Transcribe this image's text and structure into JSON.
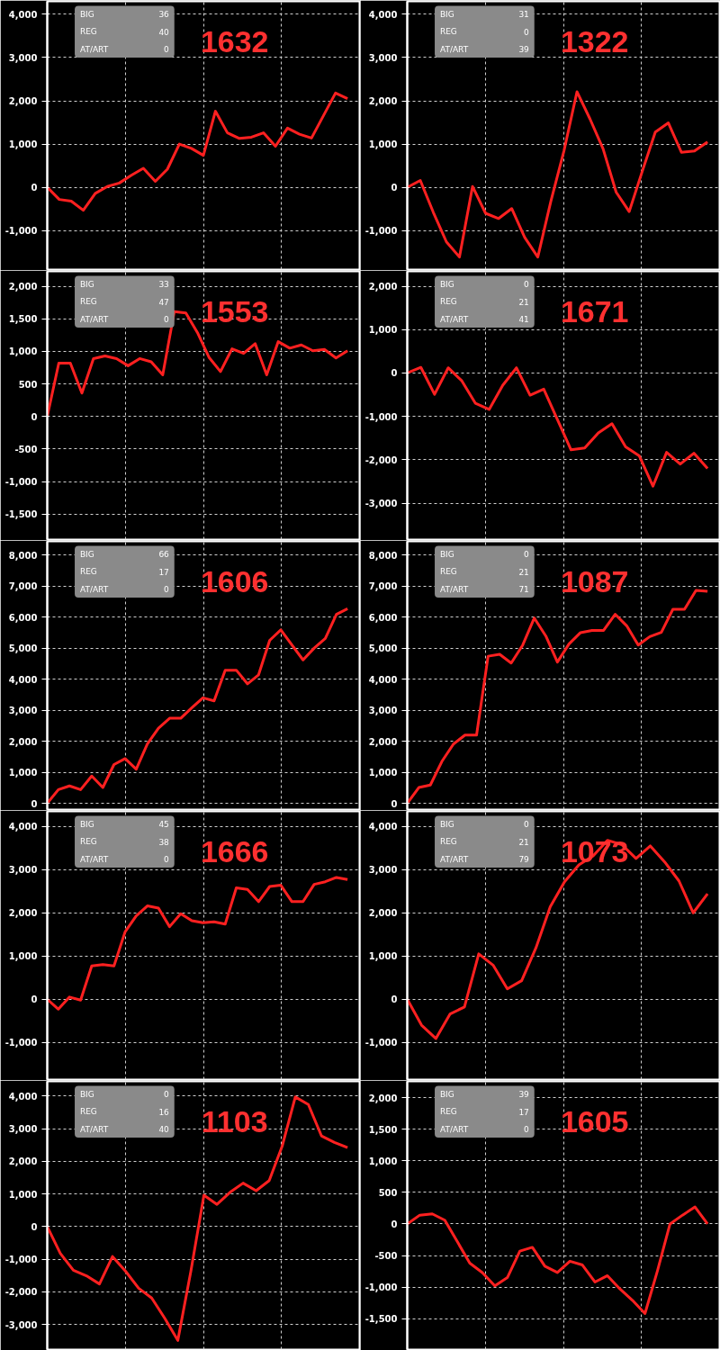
{
  "chart_data": [
    {
      "type": "line",
      "title": "1632",
      "annotations": [
        "BIG",
        "36",
        "REG",
        "40",
        "AT/ART",
        "0"
      ],
      "color": "#ff2020",
      "grid": true,
      "tick_labels": "y",
      "ylim": [
        -1900,
        4300
      ],
      "yticks": [
        {
          "value": -1000,
          "label": "-1,000"
        },
        0,
        {
          "value": 1000,
          "label": "1,000"
        },
        {
          "value": 2000,
          "label": "2,000"
        },
        {
          "value": 3000,
          "label": "3,000"
        },
        {
          "value": 4000,
          "label": "4,000"
        }
      ],
      "categories": [
        null,
        null,
        null,
        null,
        null,
        null,
        null,
        null,
        null,
        null,
        null,
        null,
        null,
        null,
        null,
        null,
        null,
        null,
        null,
        null,
        null,
        null,
        null,
        null,
        null,
        null
      ],
      "values": [
        0,
        -280,
        -320,
        -530,
        -140,
        20,
        100,
        280,
        440,
        140,
        420,
        1000,
        900,
        740,
        1760,
        1260,
        1130,
        1160,
        1260,
        950,
        1370,
        1230,
        1140,
        1660,
        2180,
        2050
      ]
    },
    {
      "type": "line",
      "title": "1322",
      "annotations": [
        "BIG",
        "31",
        "REG",
        "0",
        "AT/ART",
        "39"
      ],
      "color": "#ff2020",
      "grid": true,
      "tick_labels": "y",
      "ylim": [
        -1900,
        4300
      ],
      "yticks": [
        {
          "value": -1000,
          "label": "-1,000"
        },
        0,
        {
          "value": 1000,
          "label": "1,000"
        },
        {
          "value": 2000,
          "label": "2,000"
        },
        {
          "value": 3000,
          "label": "3,000"
        },
        {
          "value": 4000,
          "label": "4,000"
        }
      ],
      "categories": [
        null,
        null,
        null,
        null,
        null,
        null,
        null,
        null,
        null,
        null,
        null,
        null,
        null,
        null,
        null,
        null,
        null,
        null,
        null,
        null,
        null,
        null,
        null,
        null
      ],
      "values": [
        0,
        160,
        -580,
        -1260,
        -1610,
        20,
        -600,
        -720,
        -490,
        -1160,
        -1610,
        -320,
        840,
        2210,
        1580,
        890,
        -110,
        -560,
        370,
        1280,
        1490,
        810,
        840,
        1050
      ]
    },
    {
      "type": "line",
      "title": "1553",
      "annotations": [
        "BIG",
        "33",
        "REG",
        "47",
        "AT/ART",
        "0"
      ],
      "color": "#ff2020",
      "grid": true,
      "tick_labels": "y",
      "ylim": [
        -1890,
        2230
      ],
      "yticks": [
        {
          "value": -1500,
          "label": "-1,500"
        },
        {
          "value": -1000,
          "label": "-1,000"
        },
        {
          "value": -500,
          "label": "-500"
        },
        0,
        {
          "value": 500,
          "label": "500"
        },
        {
          "value": 1000,
          "label": "1,000"
        },
        {
          "value": 1500,
          "label": "1,500"
        },
        {
          "value": 2000,
          "label": "2,000"
        }
      ],
      "categories": [
        null,
        null,
        null,
        null,
        null,
        null,
        null,
        null,
        null,
        null,
        null,
        null,
        null,
        null,
        null,
        null,
        null,
        null,
        null,
        null,
        null,
        null,
        null,
        null,
        null,
        null,
        null
      ],
      "values": [
        0,
        820,
        820,
        360,
        890,
        930,
        890,
        780,
        890,
        840,
        640,
        1610,
        1590,
        1290,
        910,
        690,
        1040,
        970,
        1120,
        640,
        1150,
        1050,
        1100,
        1010,
        1030,
        900,
        1010
      ]
    },
    {
      "type": "line",
      "title": "1671",
      "annotations": [
        "BIG",
        "0",
        "REG",
        "21",
        "AT/ART",
        "41"
      ],
      "color": "#ff2020",
      "grid": true,
      "tick_labels": "y",
      "ylim": [
        -3840,
        2345
      ],
      "yticks": [
        {
          "value": -3000,
          "label": "-3,000"
        },
        {
          "value": -2000,
          "label": "-2,000"
        },
        {
          "value": -1000,
          "label": "-1,000"
        },
        0,
        {
          "value": 1000,
          "label": "1,000"
        },
        {
          "value": 2000,
          "label": "2,000"
        }
      ],
      "categories": [
        null,
        null,
        null,
        null,
        null,
        null,
        null,
        null,
        null,
        null,
        null,
        null,
        null,
        null,
        null,
        null,
        null,
        null,
        null,
        null,
        null,
        null,
        null
      ],
      "values": [
        0,
        130,
        -490,
        120,
        -180,
        -700,
        -840,
        -280,
        120,
        -510,
        -370,
        -1070,
        -1770,
        -1730,
        -1380,
        -1170,
        -1700,
        -1910,
        -2610,
        -1830,
        -2100,
        -1850,
        -2200
      ]
    },
    {
      "type": "line",
      "title": "1606",
      "annotations": [
        "BIG",
        "66",
        "REG",
        "17",
        "AT/ART",
        "0"
      ],
      "color": "#ff2020",
      "grid": true,
      "tick_labels": "y",
      "ylim": [
        -200,
        8440
      ],
      "yticks": [
        0,
        {
          "value": 1000,
          "label": "1,000"
        },
        {
          "value": 2000,
          "label": "2,000"
        },
        {
          "value": 3000,
          "label": "3,000"
        },
        {
          "value": 4000,
          "label": "4,000"
        },
        {
          "value": 5000,
          "label": "5,000"
        },
        {
          "value": 6000,
          "label": "6,000"
        },
        {
          "value": 7000,
          "label": "7,000"
        },
        {
          "value": 8000,
          "label": "8,000"
        }
      ],
      "categories": [
        null,
        null,
        null,
        null,
        null,
        null,
        null,
        null,
        null,
        null,
        null,
        null,
        null,
        null,
        null,
        null,
        null,
        null,
        null,
        null,
        null,
        null,
        null,
        null,
        null,
        null,
        null,
        null
      ],
      "values": [
        0,
        440,
        560,
        440,
        880,
        510,
        1250,
        1440,
        1100,
        1910,
        2420,
        2740,
        2740,
        3080,
        3400,
        3300,
        4290,
        4290,
        3850,
        4140,
        5250,
        5590,
        5100,
        4620,
        5000,
        5310,
        6090,
        6270
      ]
    },
    {
      "type": "line",
      "title": "1087",
      "annotations": [
        "BIG",
        "0",
        "REG",
        "21",
        "AT/ART",
        "71"
      ],
      "color": "#ff2020",
      "grid": true,
      "tick_labels": "y",
      "ylim": [
        -200,
        8440
      ],
      "yticks": [
        0,
        {
          "value": 1000,
          "label": "1,000"
        },
        {
          "value": 2000,
          "label": "2,000"
        },
        {
          "value": 3000,
          "label": "3,000"
        },
        {
          "value": 4000,
          "label": "4,000"
        },
        {
          "value": 5000,
          "label": "5,000"
        },
        {
          "value": 6000,
          "label": "6,000"
        },
        {
          "value": 7000,
          "label": "7,000"
        },
        {
          "value": 8000,
          "label": "8,000"
        }
      ],
      "categories": [
        null,
        null,
        null,
        null,
        null,
        null,
        null,
        null,
        null,
        null,
        null,
        null,
        null,
        null,
        null,
        null,
        null,
        null,
        null,
        null,
        null,
        null,
        null,
        null,
        null,
        null,
        null
      ],
      "values": [
        0,
        510,
        590,
        1350,
        1910,
        2200,
        2200,
        4740,
        4800,
        4520,
        5100,
        5970,
        5390,
        4550,
        5130,
        5500,
        5570,
        5570,
        6090,
        5720,
        5100,
        5370,
        5510,
        6250,
        6250,
        6860,
        6830
      ]
    },
    {
      "type": "line",
      "title": "1666",
      "annotations": [
        "BIG",
        "45",
        "REG",
        "38",
        "AT/ART",
        "0"
      ],
      "color": "#ff2020",
      "grid": true,
      "tick_labels": "y",
      "ylim": [
        -1860,
        4350
      ],
      "yticks": [
        {
          "value": -1000,
          "label": "-1,000"
        },
        0,
        {
          "value": 1000,
          "label": "1,000"
        },
        {
          "value": 2000,
          "label": "2,000"
        },
        {
          "value": 3000,
          "label": "3,000"
        },
        {
          "value": 4000,
          "label": "4,000"
        }
      ],
      "categories": [
        null,
        null,
        null,
        null,
        null,
        null,
        null,
        null,
        null,
        null,
        null,
        null,
        null,
        null,
        null,
        null,
        null,
        null,
        null,
        null,
        null,
        null,
        null,
        null,
        null,
        null,
        null,
        null
      ],
      "values": [
        0,
        -230,
        50,
        -20,
        770,
        800,
        770,
        1560,
        1930,
        2160,
        2110,
        1680,
        1980,
        1820,
        1770,
        1790,
        1740,
        2580,
        2540,
        2260,
        2610,
        2640,
        2260,
        2260,
        2660,
        2720,
        2820,
        2770
      ]
    },
    {
      "type": "line",
      "title": "1073",
      "annotations": [
        "BIG",
        "0",
        "REG",
        "21",
        "AT/ART",
        "79"
      ],
      "color": "#ff2020",
      "grid": true,
      "tick_labels": "y",
      "ylim": [
        -1860,
        4350
      ],
      "yticks": [
        {
          "value": -1000,
          "label": "-1,000"
        },
        0,
        {
          "value": 1000,
          "label": "1,000"
        },
        {
          "value": 2000,
          "label": "2,000"
        },
        {
          "value": 3000,
          "label": "3,000"
        },
        {
          "value": 4000,
          "label": "4,000"
        }
      ],
      "categories": [
        null,
        null,
        null,
        null,
        null,
        null,
        null,
        null,
        null,
        null,
        null,
        null,
        null,
        null,
        null,
        null,
        null,
        null,
        null,
        null,
        null,
        null
      ],
      "values": [
        0,
        -600,
        -910,
        -340,
        -180,
        1050,
        790,
        240,
        430,
        1190,
        2140,
        2720,
        3110,
        3320,
        3680,
        3580,
        3260,
        3550,
        3180,
        2740,
        2000,
        2440
      ]
    },
    {
      "type": "line",
      "title": "1103",
      "annotations": [
        "BIG",
        "0",
        "REG",
        "16",
        "AT/ART",
        "40"
      ],
      "color": "#ff2020",
      "grid": true,
      "tick_labels": "y",
      "ylim": [
        -3770,
        4450
      ],
      "yticks": [
        {
          "value": -3000,
          "label": "-3,000"
        },
        {
          "value": -2000,
          "label": "-2,000"
        },
        {
          "value": -1000,
          "label": "-1,000"
        },
        0,
        {
          "value": 1000,
          "label": "1,000"
        },
        {
          "value": 2000,
          "label": "2,000"
        },
        {
          "value": 3000,
          "label": "3,000"
        },
        {
          "value": 4000,
          "label": "4,000"
        }
      ],
      "categories": [
        null,
        null,
        null,
        null,
        null,
        null,
        null,
        null,
        null,
        null,
        null,
        null,
        null,
        null,
        null,
        null,
        null,
        null,
        null,
        null,
        null,
        null,
        null,
        null
      ],
      "values": [
        0,
        -820,
        -1340,
        -1510,
        -1760,
        -920,
        -1370,
        -1890,
        -2190,
        -2810,
        -3490,
        -1370,
        960,
        680,
        1050,
        1330,
        1100,
        1410,
        2470,
        3970,
        3740,
        2780,
        2580,
        2420
      ]
    },
    {
      "type": "line",
      "title": "1605",
      "annotations": [
        "BIG",
        "39",
        "REG",
        "17",
        "AT/ART",
        "0"
      ],
      "color": "#ff2020",
      "grid": true,
      "tick_labels": "y",
      "ylim": [
        -1990,
        2260
      ],
      "yticks": [
        {
          "value": -1500,
          "label": "-1,500"
        },
        {
          "value": -1000,
          "label": "-1,000"
        },
        {
          "value": -500,
          "label": "-500"
        },
        0,
        {
          "value": 500,
          "label": "500"
        },
        {
          "value": 1000,
          "label": "1,000"
        },
        {
          "value": 1500,
          "label": "1,500"
        },
        {
          "value": 2000,
          "label": "2,000"
        }
      ],
      "categories": [
        null,
        null,
        null,
        null,
        null,
        null,
        null,
        null,
        null,
        null,
        null,
        null,
        null,
        null,
        null,
        null,
        null,
        null,
        null,
        null,
        null,
        null,
        null,
        null,
        null
      ],
      "values": [
        0,
        140,
        160,
        60,
        -280,
        -620,
        -770,
        -980,
        -850,
        -430,
        -370,
        -670,
        -770,
        -590,
        -650,
        -920,
        -820,
        -1030,
        -1210,
        -1420,
        -740,
        0,
        140,
        270,
        0
      ]
    }
  ]
}
